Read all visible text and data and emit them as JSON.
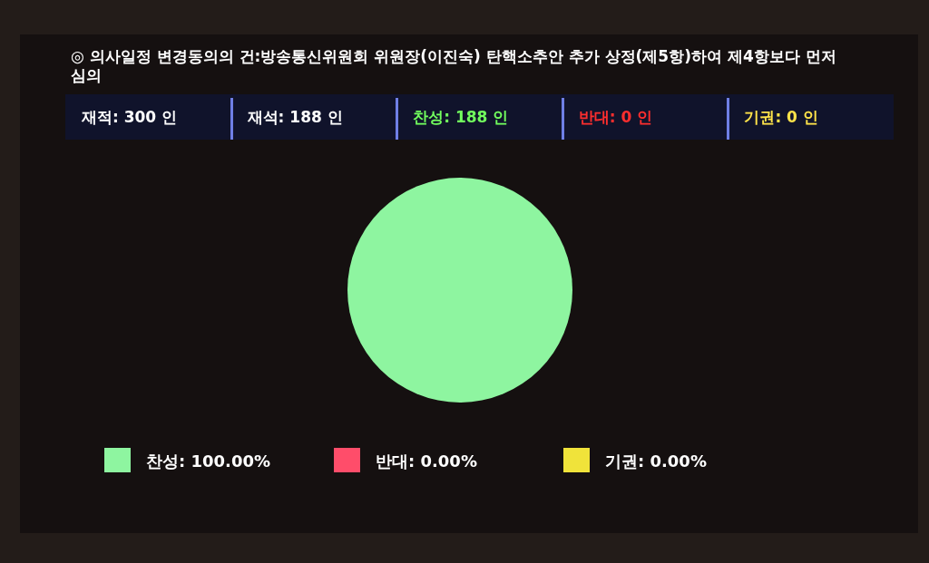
{
  "chart_data": {
    "type": "pie",
    "title": "◎ 의사일정 변경동의의 건:방송통신위원회 위원장(이진숙) 탄핵소추안 추가 상정(제5항)하여 제4항보다 먼저 심의",
    "categories": [
      "찬성",
      "반대",
      "기권"
    ],
    "values": [
      100,
      0,
      0
    ],
    "value_labels": [
      "100.00%",
      "0.00%",
      "0.00%"
    ],
    "colors": [
      "#8ef5a0",
      "#ff4d6a",
      "#f0e33a"
    ],
    "annotations": [
      "재적: 300 인",
      "재석: 188 인",
      "찬성: 188 인",
      "반대: 0 인",
      "기권: 0 인"
    ],
    "legend": "bottom"
  }
}
